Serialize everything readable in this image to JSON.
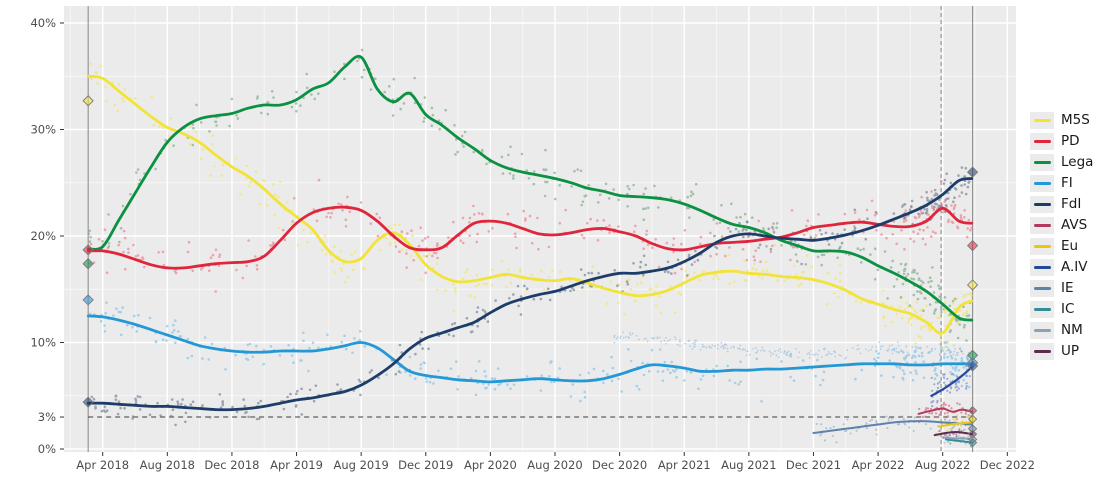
{
  "chart_data": {
    "type": "scatter",
    "description": "Opinion poll scatter with local-regression trend lines per party, April 2018 - September 2022, with election-result diamonds at both ends, a dashed 3% threshold line and vertical event lines",
    "x_axis": {
      "tick_labels": [
        "Apr 2018",
        "Aug 2018",
        "Dec 2018",
        "Apr 2019",
        "Aug 2019",
        "Dec 2019",
        "Apr 2020",
        "Aug 2020",
        "Dec 2020",
        "Apr 2021",
        "Aug 2021",
        "Dec 2021",
        "Apr 2022",
        "Aug 2022",
        "Dec 2022"
      ],
      "months_per_tick": 4,
      "start_label": "Apr 2018"
    },
    "y_axis": {
      "ticks": [
        0,
        3,
        10,
        20,
        30,
        40
      ],
      "tick_labels": [
        "0%",
        "3%",
        "10%",
        "20%",
        "30%",
        "40%"
      ],
      "unit": "%",
      "range": [
        0,
        41.6
      ],
      "grid_major": [
        0,
        10,
        20,
        30,
        40
      ],
      "grid_minor": [
        5,
        15,
        25,
        35
      ]
    },
    "threshold_line": {
      "value": 3,
      "dashed": true
    },
    "vlines": [
      {
        "month": -0.9,
        "dashed": false
      },
      {
        "month": 51.9,
        "dashed": true
      },
      {
        "month": 53.85,
        "dashed": false
      }
    ],
    "series": [
      {
        "id": "M5S",
        "label": "M5S",
        "color": "#f2e338",
        "dot_color": "#f2e76e",
        "line_width": 2.8,
        "head": [
          -0.9,
          35.0
        ],
        "start": 0,
        "step": 1,
        "values": [
          34.8,
          33.6,
          32.4,
          31.2,
          30.2,
          29.6,
          28.8,
          27.6,
          26.5,
          25.6,
          24.4,
          23.0,
          21.8,
          20.6,
          18.6,
          17.6,
          17.9,
          19.6,
          20.3,
          19.2,
          17.3,
          16.2,
          15.7,
          15.8,
          16.1,
          16.4,
          16.1,
          15.9,
          15.8,
          16.0,
          15.6,
          15.1,
          14.7,
          14.4,
          14.5,
          14.9,
          15.6,
          16.3,
          16.6,
          16.7,
          16.5,
          16.4,
          16.2,
          16.1,
          15.9,
          15.5,
          14.9,
          14.1,
          13.6,
          13.1,
          12.7,
          11.9,
          10.9,
          13.3
        ],
        "tail": [
          53.8,
          13.9
        ],
        "scatter": {
          "n": 280,
          "sigma": 1.0,
          "r": 1.3,
          "alpha": 0.75,
          "extra_end": 55
        }
      },
      {
        "id": "PD",
        "label": "PD",
        "color": "#e0263c",
        "dot_color": "#ec7585",
        "line_width": 2.8,
        "head": [
          -0.9,
          18.6
        ],
        "start": 0,
        "step": 1,
        "values": [
          18.6,
          18.3,
          17.8,
          17.3,
          17.0,
          17.0,
          17.2,
          17.4,
          17.5,
          17.6,
          18.1,
          19.6,
          21.2,
          22.2,
          22.6,
          22.7,
          22.4,
          21.4,
          20.0,
          18.9,
          18.7,
          18.9,
          20.1,
          21.2,
          21.4,
          21.2,
          20.7,
          20.2,
          20.1,
          20.3,
          20.6,
          20.7,
          20.4,
          20.0,
          19.3,
          18.8,
          18.7,
          19.0,
          19.3,
          19.4,
          19.5,
          19.7,
          19.9,
          20.3,
          20.8,
          21.0,
          21.2,
          21.3,
          21.1,
          20.9,
          20.9,
          21.4,
          22.6,
          21.4
        ],
        "tail": [
          53.8,
          21.2
        ],
        "scatter": {
          "n": 280,
          "sigma": 1.0,
          "r": 1.3,
          "alpha": 0.6,
          "extra_end": 55
        }
      },
      {
        "id": "Lega",
        "label": "Lega",
        "color": "#0a9141",
        "dot_color": "#7fa884",
        "line_width": 2.8,
        "head": [
          -0.9,
          18.8
        ],
        "start": 0,
        "step": 1,
        "values": [
          19.0,
          21.5,
          24.0,
          26.5,
          28.8,
          30.2,
          31.0,
          31.3,
          31.5,
          32.0,
          32.3,
          32.3,
          32.8,
          33.8,
          34.4,
          35.9,
          36.8,
          33.8,
          32.6,
          33.4,
          31.4,
          30.4,
          29.2,
          28.2,
          27.1,
          26.4,
          26.0,
          25.7,
          25.4,
          25.0,
          24.5,
          24.2,
          23.8,
          23.7,
          23.6,
          23.4,
          23.0,
          22.4,
          21.7,
          21.1,
          20.8,
          20.3,
          19.6,
          19.1,
          18.6,
          18.6,
          18.5,
          18.0,
          17.2,
          16.5,
          15.7,
          14.8,
          13.6,
          12.3
        ],
        "tail": [
          53.8,
          12.1
        ],
        "scatter": {
          "n": 280,
          "sigma": 1.05,
          "r": 1.3,
          "alpha": 0.65,
          "extra_end": 55
        }
      },
      {
        "id": "FI",
        "label": "FI",
        "color": "#2498d5",
        "dot_color": "#7fc0e8",
        "line_width": 2.8,
        "head": [
          -0.9,
          12.5
        ],
        "start": 0,
        "step": 1,
        "values": [
          12.4,
          12.1,
          11.7,
          11.2,
          10.7,
          10.2,
          9.7,
          9.4,
          9.2,
          9.1,
          9.1,
          9.2,
          9.2,
          9.2,
          9.4,
          9.7,
          10.0,
          9.5,
          8.4,
          7.3,
          6.9,
          6.7,
          6.5,
          6.4,
          6.3,
          6.4,
          6.5,
          6.6,
          6.5,
          6.4,
          6.4,
          6.6,
          7.0,
          7.5,
          7.9,
          7.8,
          7.6,
          7.3,
          7.3,
          7.4,
          7.4,
          7.5,
          7.5,
          7.6,
          7.7,
          7.8,
          7.9,
          8.0,
          8.0,
          8.0,
          7.9,
          7.9,
          8.0,
          8.0
        ],
        "tail": [
          53.8,
          8.0
        ],
        "scatter": {
          "n": 280,
          "sigma": 0.85,
          "r": 1.3,
          "alpha": 0.65,
          "extra_end": 50
        }
      },
      {
        "id": "FdI",
        "label": "FdI",
        "color": "#1d3d68",
        "dot_color": "#64748c",
        "line_width": 2.8,
        "head": [
          -0.9,
          4.3
        ],
        "start": 0,
        "step": 1,
        "values": [
          4.3,
          4.2,
          4.1,
          4.0,
          4.0,
          3.9,
          3.8,
          3.7,
          3.7,
          3.8,
          4.0,
          4.3,
          4.6,
          4.8,
          5.1,
          5.4,
          6.0,
          6.9,
          8.0,
          9.4,
          10.4,
          10.9,
          11.4,
          11.9,
          12.8,
          13.6,
          14.1,
          14.5,
          14.8,
          15.3,
          15.8,
          16.2,
          16.5,
          16.5,
          16.7,
          17.0,
          17.6,
          18.4,
          19.4,
          20.0,
          20.2,
          20.0,
          19.8,
          19.7,
          19.6,
          19.8,
          20.1,
          20.5,
          21.0,
          21.6,
          22.2,
          22.9,
          23.9,
          25.2
        ],
        "tail": [
          53.8,
          25.4
        ],
        "scatter": {
          "n": 280,
          "sigma": 0.75,
          "r": 1.3,
          "alpha": 0.6,
          "extra_end": 55
        }
      },
      {
        "id": "AVS",
        "label": "AVS",
        "color": "#b23a5d",
        "dot_color": "#cc6480",
        "line_width": 2.0,
        "points": [
          [
            50.5,
            3.3
          ],
          [
            51.3,
            3.6
          ],
          [
            52.0,
            3.8
          ],
          [
            52.6,
            3.5
          ],
          [
            53.2,
            3.7
          ],
          [
            53.8,
            3.5
          ]
        ],
        "scatter": {
          "n": 45,
          "sigma": 0.45,
          "r": 1.1,
          "alpha": 0.65
        }
      },
      {
        "id": "Eu",
        "label": "Eu",
        "color": "#edc60a",
        "dot_color": "#e8d060",
        "line_width": 2.0,
        "points": [
          [
            51.8,
            2.1
          ],
          [
            52.5,
            2.3
          ],
          [
            53.1,
            2.4
          ],
          [
            53.8,
            2.5
          ]
        ],
        "scatter": {
          "n": 28,
          "sigma": 0.35,
          "r": 1.1,
          "alpha": 0.75
        }
      },
      {
        "id": "A.IV",
        "label": "A.IV",
        "color": "#24489b",
        "dot_color": "#5f7fc0",
        "line_width": 2.2,
        "points": [
          [
            51.3,
            5.0
          ],
          [
            52.0,
            5.6
          ],
          [
            52.7,
            6.3
          ],
          [
            53.3,
            7.0
          ],
          [
            53.8,
            7.7
          ]
        ],
        "scatter": {
          "n": 55,
          "sigma": 0.9,
          "r": 1.1,
          "alpha": 0.6
        }
      },
      {
        "id": "IE",
        "label": "IE",
        "color": "#5d83ad",
        "dot_color": "#89a4bf",
        "line_width": 2.0,
        "points": [
          [
            44,
            1.5
          ],
          [
            45,
            1.7
          ],
          [
            46,
            1.9
          ],
          [
            47,
            2.1
          ],
          [
            48,
            2.3
          ],
          [
            49,
            2.5
          ],
          [
            50,
            2.6
          ],
          [
            51,
            2.6
          ],
          [
            52,
            2.5
          ],
          [
            53,
            2.4
          ],
          [
            53.8,
            2.3
          ]
        ],
        "scatter": {
          "n": 70,
          "sigma": 0.45,
          "r": 1.05,
          "alpha": 0.6
        }
      },
      {
        "id": "IC",
        "label": "IC",
        "color": "#338c96",
        "dot_color": "#6aa8b0",
        "line_width": 2.0,
        "points": [
          [
            52.2,
            0.9
          ],
          [
            52.8,
            0.8
          ],
          [
            53.3,
            0.7
          ],
          [
            53.8,
            0.6
          ]
        ],
        "scatter": {
          "n": 14,
          "sigma": 0.25,
          "r": 1.0,
          "alpha": 0.65
        }
      },
      {
        "id": "NM",
        "label": "NM",
        "color": "#8ba1b6",
        "dot_color": "#a5b5c5",
        "line_width": 2.0,
        "points": [
          [
            52.0,
            1.1
          ],
          [
            52.7,
            1.0
          ],
          [
            53.3,
            1.0
          ],
          [
            53.8,
            0.9
          ]
        ],
        "scatter": {
          "n": 16,
          "sigma": 0.3,
          "r": 1.0,
          "alpha": 0.65
        }
      },
      {
        "id": "UP",
        "label": "UP",
        "color": "#5f2a52",
        "dot_color": "#8a5878",
        "line_width": 2.0,
        "points": [
          [
            51.5,
            1.3
          ],
          [
            52.2,
            1.5
          ],
          [
            52.8,
            1.6
          ],
          [
            53.4,
            1.5
          ],
          [
            53.8,
            1.4
          ]
        ],
        "scatter": {
          "n": 24,
          "sigma": 0.3,
          "r": 1.0,
          "alpha": 0.6
        }
      },
      {
        "id": "dotted-band",
        "label": null,
        "color": "#9ec4e4",
        "dot_color": "#9ec4e4",
        "line": false,
        "points": [
          [
            31.5,
            10.6
          ],
          [
            36,
            10.0
          ],
          [
            40,
            9.2
          ],
          [
            44,
            8.8
          ],
          [
            46,
            9.0
          ],
          [
            48,
            9.4
          ],
          [
            50,
            9.5
          ],
          [
            52,
            9.3
          ],
          [
            53.5,
            9.0
          ]
        ],
        "scatter": {
          "n": 210,
          "sigma": 0.22,
          "r": 0.85,
          "alpha": 0.8
        }
      }
    ],
    "election_results_2018": [
      {
        "party": "M5S",
        "value": 32.7
      },
      {
        "party": "PD",
        "value": 18.7
      },
      {
        "party": "Lega",
        "value": 17.4
      },
      {
        "party": "FI",
        "value": 14.0
      },
      {
        "party": "FdI",
        "value": 4.4
      }
    ],
    "election_results_2022": [
      {
        "party": "FdI",
        "value": 26.0
      },
      {
        "party": "PD",
        "value": 19.1
      },
      {
        "party": "M5S",
        "value": 15.4
      },
      {
        "party": "Lega",
        "value": 8.8
      },
      {
        "party": "FI",
        "value": 8.1
      },
      {
        "party": "A.IV",
        "value": 7.8
      },
      {
        "party": "AVS",
        "value": 3.6
      },
      {
        "party": "Eu",
        "value": 2.8
      },
      {
        "party": "IE",
        "value": 1.9
      },
      {
        "party": "UP",
        "value": 1.4
      },
      {
        "party": "NM",
        "value": 0.9
      },
      {
        "party": "IC",
        "value": 0.6
      }
    ]
  },
  "legend": {
    "items": [
      {
        "label": "M5S",
        "color": "#f2e338"
      },
      {
        "label": "PD",
        "color": "#e0263c"
      },
      {
        "label": "Lega",
        "color": "#0a9141"
      },
      {
        "label": "FI",
        "color": "#2498d5"
      },
      {
        "label": "FdI",
        "color": "#1d3d68"
      },
      {
        "label": "AVS",
        "color": "#b23a5d"
      },
      {
        "label": "Eu",
        "color": "#edc60a"
      },
      {
        "label": "A.IV",
        "color": "#24489b"
      },
      {
        "label": "IE",
        "color": "#5d83ad"
      },
      {
        "label": "IC",
        "color": "#338c96"
      },
      {
        "label": "NM",
        "color": "#8ba1b6"
      },
      {
        "label": "UP",
        "color": "#5f2a52"
      }
    ]
  },
  "colors": {
    "panel_bg": "#ebebeb",
    "grid_major": "#ffffff",
    "grid_minor": "#f7f7f7",
    "axis_text": "#4d4d4d",
    "tick_mark": "#333333",
    "threshold": "#3c3c3c",
    "event_line": "#8f8f8f",
    "diamond_stroke": "#7a7a7a"
  }
}
